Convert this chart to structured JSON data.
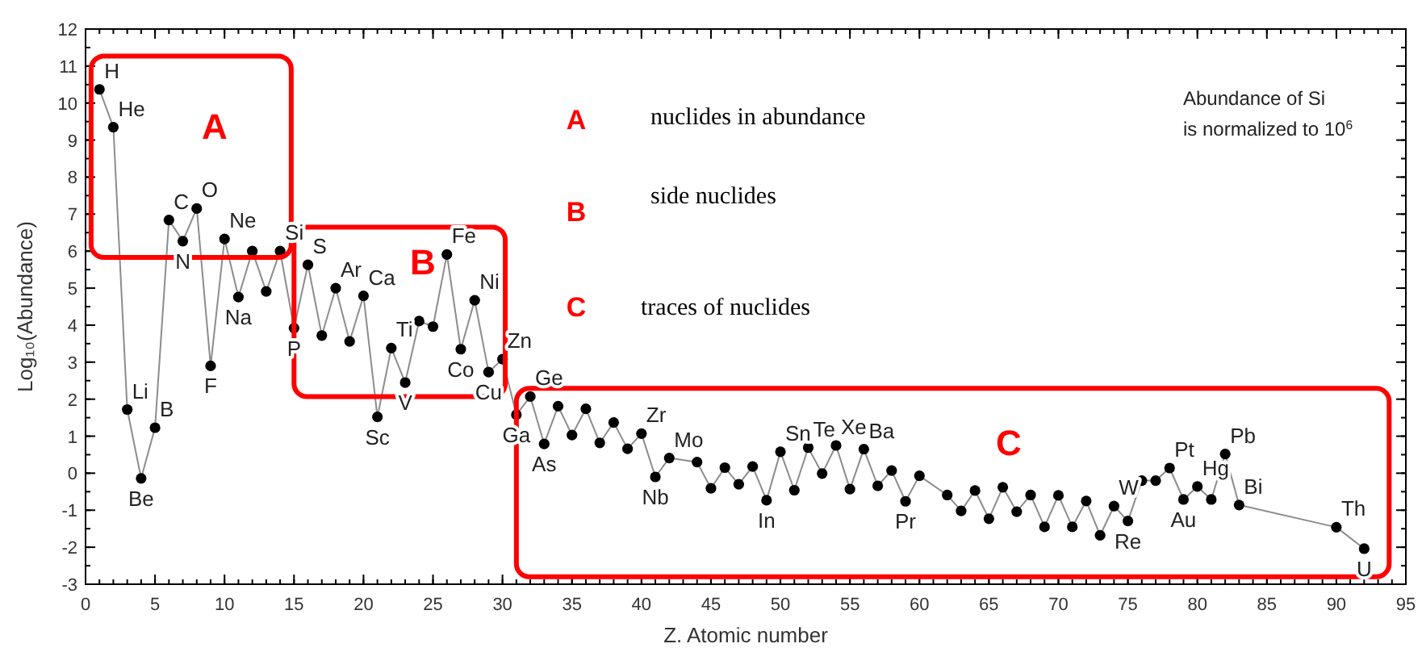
{
  "chart_data": {
    "type": "line",
    "xlabel": "Z. Atomic number",
    "ylabel": "Log₁₀(Abundance)",
    "xlim": [
      0,
      95
    ],
    "xticks": [
      0,
      5,
      10,
      15,
      20,
      25,
      30,
      35,
      40,
      45,
      50,
      55,
      60,
      65,
      70,
      75,
      80,
      85,
      90,
      95
    ],
    "ylim": [
      -3,
      12
    ],
    "yticks": [
      -3,
      -2,
      -1,
      0,
      1,
      2,
      3,
      4,
      5,
      6,
      7,
      8,
      9,
      10,
      11,
      12
    ],
    "grid": false,
    "marker": "circle",
    "line_style": "solid",
    "series": [
      {
        "color": "#000000",
        "x": [
          1,
          2,
          3,
          4,
          5,
          6,
          7,
          8,
          9,
          10,
          11,
          12,
          13,
          14,
          15,
          16,
          17,
          18,
          19,
          20,
          21,
          22,
          23,
          24,
          25,
          26,
          27,
          28,
          29,
          30,
          31,
          32,
          33,
          34,
          35,
          36,
          37,
          38,
          39,
          40,
          41,
          42,
          44,
          45,
          46,
          47,
          48,
          49,
          50,
          51,
          52,
          53,
          54,
          55,
          56,
          57,
          58,
          59,
          60,
          62,
          63,
          64,
          65,
          66,
          67,
          68,
          69,
          70,
          71,
          72,
          73,
          74,
          75,
          76,
          77,
          78,
          79,
          80,
          81,
          82,
          83,
          90,
          92
        ],
        "values": [
          10.37,
          9.35,
          1.72,
          -0.14,
          1.23,
          6.84,
          6.27,
          7.15,
          2.9,
          6.33,
          4.76,
          6.0,
          4.91,
          6.0,
          3.92,
          5.63,
          3.72,
          5.0,
          3.56,
          4.79,
          1.52,
          3.38,
          2.45,
          4.11,
          3.96,
          5.91,
          3.35,
          4.67,
          2.73,
          3.08,
          1.58,
          2.07,
          0.79,
          1.81,
          1.03,
          1.74,
          0.82,
          1.37,
          0.66,
          1.07,
          -0.1,
          0.41,
          0.3,
          -0.41,
          0.15,
          -0.3,
          0.18,
          -0.73,
          0.58,
          -0.46,
          0.69,
          -0.01,
          0.75,
          -0.43,
          0.65,
          -0.34,
          0.07,
          -0.76,
          -0.07,
          -0.59,
          -1.02,
          -0.47,
          -1.23,
          -0.38,
          -1.04,
          -0.59,
          -1.45,
          -0.6,
          -1.45,
          -0.75,
          -1.68,
          -0.89,
          -1.29,
          -0.2,
          -0.2,
          0.14,
          -0.71,
          -0.36,
          -0.71,
          0.52,
          -0.86,
          -1.46,
          -2.04
        ]
      }
    ],
    "annotations": [
      {
        "text": "H",
        "x": 1,
        "y": 10.37
      },
      {
        "text": "He",
        "x": 2,
        "y": 9.35
      },
      {
        "text": "Li",
        "x": 3,
        "y": 1.72
      },
      {
        "text": "Be",
        "x": 4,
        "y": -0.14
      },
      {
        "text": "B",
        "x": 5,
        "y": 1.23
      },
      {
        "text": "C",
        "x": 6,
        "y": 6.84
      },
      {
        "text": "N",
        "x": 7,
        "y": 6.27
      },
      {
        "text": "O",
        "x": 8,
        "y": 7.15
      },
      {
        "text": "F",
        "x": 9,
        "y": 2.9
      },
      {
        "text": "Ne",
        "x": 10,
        "y": 6.33
      },
      {
        "text": "Na",
        "x": 11,
        "y": 4.76
      },
      {
        "text": "Si",
        "x": 14,
        "y": 6.0
      },
      {
        "text": "P",
        "x": 15,
        "y": 3.92
      },
      {
        "text": "S",
        "x": 16,
        "y": 5.63
      },
      {
        "text": "Ar",
        "x": 18,
        "y": 5.0
      },
      {
        "text": "Ca",
        "x": 20,
        "y": 4.79
      },
      {
        "text": "Sc",
        "x": 21,
        "y": 1.52
      },
      {
        "text": "Ti",
        "x": 22,
        "y": 3.38
      },
      {
        "text": "V",
        "x": 23,
        "y": 2.45
      },
      {
        "text": "Fe",
        "x": 26,
        "y": 5.91
      },
      {
        "text": "Co",
        "x": 27,
        "y": 3.35
      },
      {
        "text": "Ni",
        "x": 28,
        "y": 4.67
      },
      {
        "text": "Cu",
        "x": 29,
        "y": 2.73
      },
      {
        "text": "Zn",
        "x": 30,
        "y": 3.08
      },
      {
        "text": "Ga",
        "x": 31,
        "y": 1.58
      },
      {
        "text": "Ge",
        "x": 32,
        "y": 2.07
      },
      {
        "text": "As",
        "x": 33,
        "y": 0.79
      },
      {
        "text": "Zr",
        "x": 40,
        "y": 1.07
      },
      {
        "text": "Nb",
        "x": 41,
        "y": -0.1
      },
      {
        "text": "Mo",
        "x": 42,
        "y": 0.41
      },
      {
        "text": "Sn",
        "x": 50,
        "y": 0.58
      },
      {
        "text": "In",
        "x": 49,
        "y": -0.73
      },
      {
        "text": "Te",
        "x": 52,
        "y": 0.69
      },
      {
        "text": "Xe",
        "x": 54,
        "y": 0.75
      },
      {
        "text": "Ba",
        "x": 56,
        "y": 0.65
      },
      {
        "text": "Pr",
        "x": 59,
        "y": -0.76
      },
      {
        "text": "W",
        "x": 74,
        "y": -0.89
      },
      {
        "text": "Re",
        "x": 75,
        "y": -1.29
      },
      {
        "text": "Pt",
        "x": 78,
        "y": 0.14
      },
      {
        "text": "Au",
        "x": 79,
        "y": -0.71
      },
      {
        "text": "Hg",
        "x": 80,
        "y": -0.36
      },
      {
        "text": "Pb",
        "x": 82,
        "y": 0.52
      },
      {
        "text": "Bi",
        "x": 83,
        "y": -0.86
      },
      {
        "text": "Th",
        "x": 90,
        "y": -1.46
      },
      {
        "text": "U",
        "x": 92,
        "y": -2.04
      },
      "A",
      "B",
      "C",
      "A",
      "nuclides in abundance",
      "B",
      "side nuclides",
      "C",
      "traces of nuclides",
      "Abundance of Si is normalized to 10$^{6}$"
    ]
  }
}
